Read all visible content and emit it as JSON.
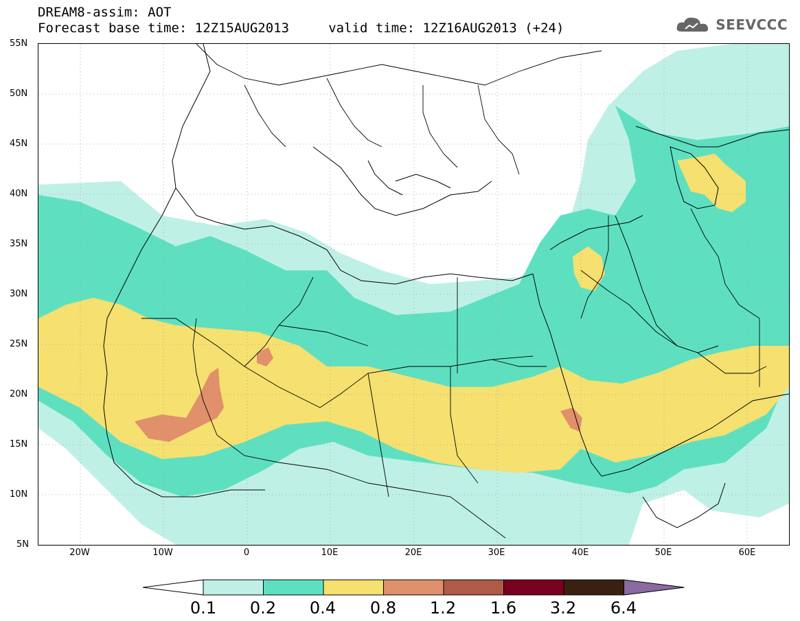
{
  "header": {
    "title": "DREAM8-assim: AOT",
    "subtitle": "Forecast base time: 12Z15AUG2013     valid time: 12Z16AUG2013 (+24)"
  },
  "logo": {
    "text": "SEEVCCC",
    "icon": "cloud-icon"
  },
  "map": {
    "lat_ticks": [
      "55N",
      "50N",
      "45N",
      "40N",
      "35N",
      "30N",
      "25N",
      "20N",
      "15N",
      "10N",
      "5N"
    ],
    "lon_ticks": [
      "20W",
      "10W",
      "0",
      "10E",
      "20E",
      "30E",
      "40E",
      "50E",
      "60E"
    ],
    "grid": true,
    "lat_range": [
      5,
      55
    ],
    "lon_range": [
      -25,
      65
    ]
  },
  "colorbar": {
    "labels": [
      "0.1",
      "0.2",
      "0.4",
      "0.8",
      "1.2",
      "1.6",
      "3.2",
      "6.4"
    ],
    "colors": [
      "#ffffff",
      "#bff0e6",
      "#5ee0c0",
      "#f5e070",
      "#e0906a",
      "#b05a48",
      "#7a0020",
      "#3a2010",
      "#8a6aa0"
    ]
  },
  "legend_colors": {
    "c1": "#bff0e6",
    "c2": "#5ee0c0",
    "c3": "#f5e070",
    "c4": "#e0906a"
  }
}
